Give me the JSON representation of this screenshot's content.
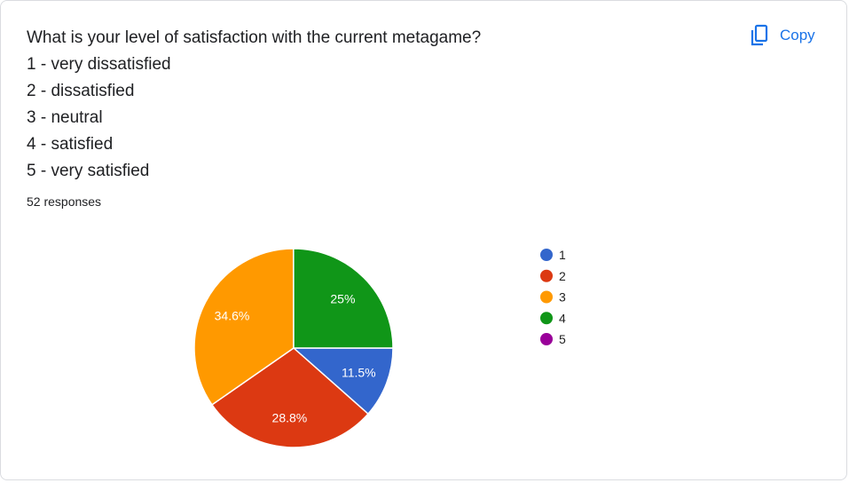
{
  "question": {
    "lines": [
      "What is your level of satisfaction with the current metagame?",
      "1 - very dissatisfied",
      "2 - dissatisfied",
      "3 - neutral",
      "4 - satisfied",
      "5 - very satisfied"
    ]
  },
  "responses_label": "52 responses",
  "copy": {
    "label": "Copy",
    "icon": "copy-icon",
    "color": "#1a73e8"
  },
  "chart_data": {
    "type": "pie",
    "title": "",
    "categories": [
      "1",
      "2",
      "3",
      "4",
      "5"
    ],
    "values": [
      11.5,
      28.8,
      34.6,
      25,
      0
    ],
    "labels": [
      "11.5%",
      "28.8%",
      "34.6%",
      "25%",
      ""
    ],
    "colors": [
      "#3366cc",
      "#dc3912",
      "#ff9900",
      "#109618",
      "#990099"
    ],
    "legend_position": "right",
    "start": "bottom-right of 3 o'clock, clockwise from 1"
  }
}
